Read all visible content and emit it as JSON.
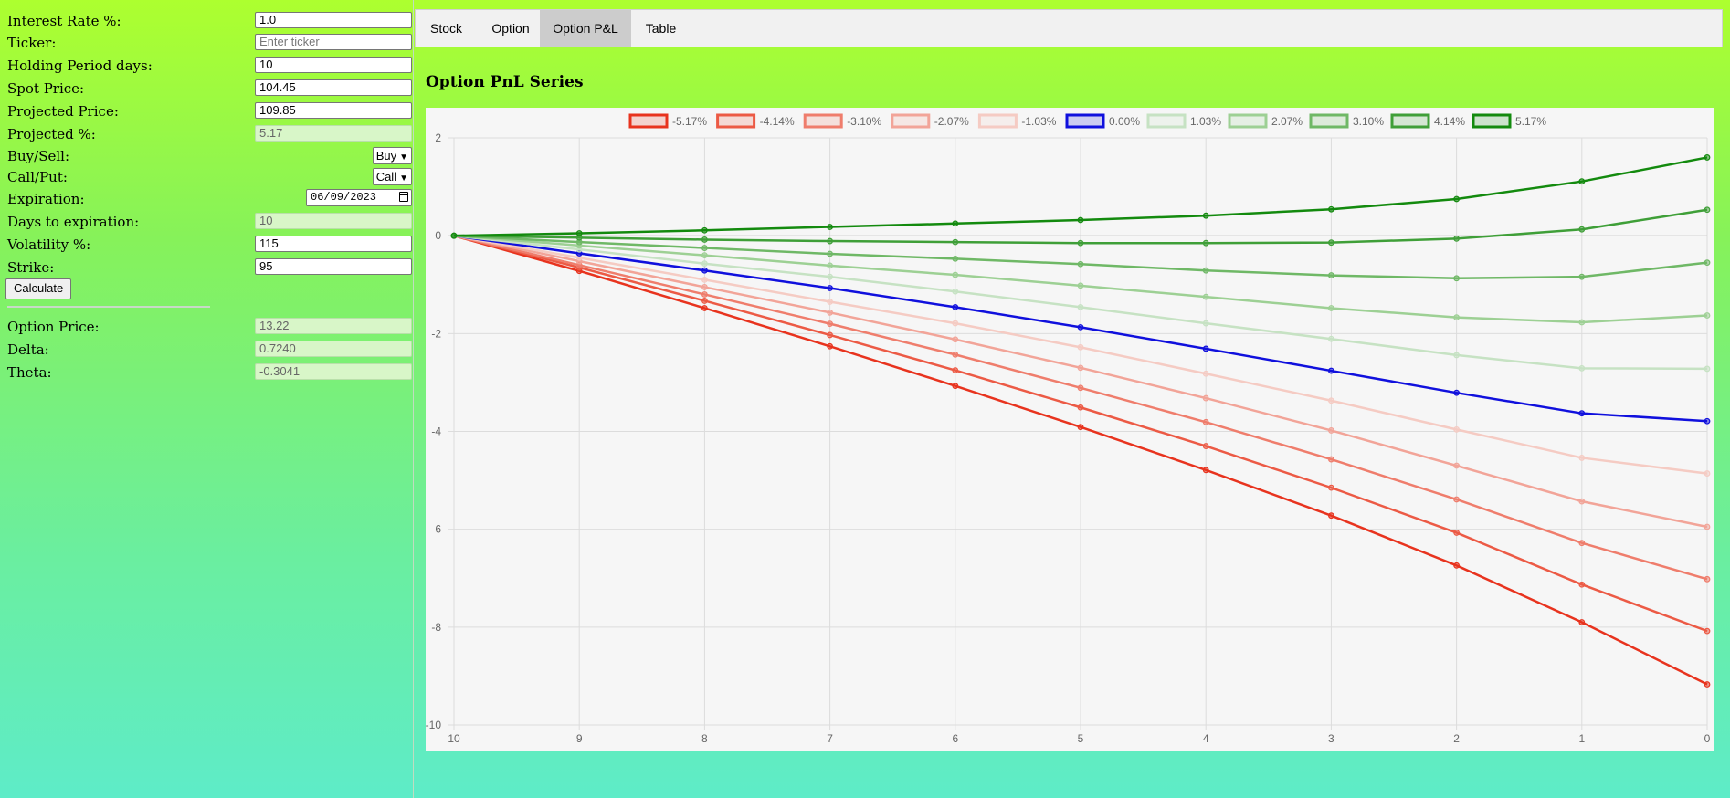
{
  "form": {
    "interest_rate": {
      "label": "Interest Rate %:",
      "value": "1.0"
    },
    "ticker": {
      "label": "Ticker:",
      "value": "",
      "placeholder": "Enter ticker"
    },
    "holding_period": {
      "label": "Holding Period days:",
      "value": "10"
    },
    "spot_price": {
      "label": "Spot Price:",
      "value": "104.45"
    },
    "projected_price": {
      "label": "Projected Price:",
      "value": "109.85"
    },
    "projected_pct": {
      "label": "Projected %:",
      "value": "5.17"
    },
    "buy_sell": {
      "label": "Buy/Sell:",
      "value": "Buy"
    },
    "call_put": {
      "label": "Call/Put:",
      "value": "Call"
    },
    "expiration": {
      "label": "Expiration:",
      "value": "06/09/2023"
    },
    "days_to_expiration": {
      "label": "Days to expiration:",
      "value": "10"
    },
    "volatility": {
      "label": "Volatility %:",
      "value": "115"
    },
    "strike": {
      "label": "Strike:",
      "value": "95"
    },
    "calculate_label": "Calculate"
  },
  "results": {
    "option_price": {
      "label": "Option Price:",
      "value": "13.22"
    },
    "delta": {
      "label": "Delta:",
      "value": "0.7240"
    },
    "theta": {
      "label": "Theta:",
      "value": "-0.3041"
    }
  },
  "tabs": [
    {
      "label": "Stock",
      "active": false
    },
    {
      "label": "Option",
      "active": false
    },
    {
      "label": "Option P&L",
      "active": true
    },
    {
      "label": "Table",
      "active": false
    }
  ],
  "icons": {
    "select_caret": "chevron-down-icon",
    "date_picker": "calendar-icon"
  },
  "chart_title": "Option PnL Series",
  "chart_data": {
    "type": "line",
    "title": "Option PnL Series",
    "x": [
      10,
      9,
      8,
      7,
      6,
      5,
      4,
      3,
      2,
      1,
      0
    ],
    "ylim": [
      -10,
      2
    ],
    "yticks": [
      2,
      0,
      -2,
      -4,
      -6,
      -8,
      -10
    ],
    "grid": true,
    "legend_position": "top",
    "series": [
      {
        "name": "-5.17%",
        "color": "#e8331e",
        "values": [
          0,
          -0.72,
          -1.48,
          -2.26,
          -3.07,
          -3.91,
          -4.79,
          -5.72,
          -6.74,
          -7.9,
          -9.17
        ]
      },
      {
        "name": "-4.14%",
        "color": "#ec5a45",
        "values": [
          0,
          -0.65,
          -1.33,
          -2.03,
          -2.75,
          -3.51,
          -4.3,
          -5.15,
          -6.07,
          -7.13,
          -8.08
        ]
      },
      {
        "name": "-3.10%",
        "color": "#ef7d6c",
        "values": [
          0,
          -0.6,
          -1.2,
          -1.8,
          -2.43,
          -3.11,
          -3.81,
          -4.57,
          -5.39,
          -6.28,
          -7.02
        ]
      },
      {
        "name": "-2.07%",
        "color": "#f2a498",
        "values": [
          0,
          -0.52,
          -1.05,
          -1.57,
          -2.12,
          -2.7,
          -3.32,
          -3.98,
          -4.7,
          -5.43,
          -5.95
        ]
      },
      {
        "name": "-1.03%",
        "color": "#f5cbc3",
        "values": [
          0,
          -0.45,
          -0.9,
          -1.35,
          -1.79,
          -2.28,
          -2.82,
          -3.37,
          -3.96,
          -4.54,
          -4.86
        ]
      },
      {
        "name": "0.00%",
        "color": "#1010dd",
        "values": [
          0,
          -0.36,
          -0.71,
          -1.07,
          -1.46,
          -1.87,
          -2.31,
          -2.76,
          -3.21,
          -3.63,
          -3.79
        ]
      },
      {
        "name": "1.03%",
        "color": "#c6e2c3",
        "values": [
          0,
          -0.28,
          -0.57,
          -0.84,
          -1.14,
          -1.46,
          -1.79,
          -2.11,
          -2.44,
          -2.71,
          -2.72
        ]
      },
      {
        "name": "2.07%",
        "color": "#9dd094",
        "values": [
          0,
          -0.2,
          -0.4,
          -0.61,
          -0.8,
          -1.02,
          -1.25,
          -1.48,
          -1.67,
          -1.77,
          -1.63
        ]
      },
      {
        "name": "3.10%",
        "color": "#6fb866",
        "values": [
          0,
          -0.13,
          -0.25,
          -0.37,
          -0.47,
          -0.58,
          -0.71,
          -0.81,
          -0.87,
          -0.84,
          -0.55
        ]
      },
      {
        "name": "4.14%",
        "color": "#3f9f38",
        "values": [
          0,
          -0.04,
          -0.08,
          -0.11,
          -0.13,
          -0.15,
          -0.15,
          -0.14,
          -0.06,
          0.13,
          0.53
        ]
      },
      {
        "name": "5.17%",
        "color": "#138a0e",
        "values": [
          0,
          0.05,
          0.11,
          0.18,
          0.25,
          0.32,
          0.41,
          0.54,
          0.75,
          1.11,
          1.6
        ]
      }
    ]
  }
}
